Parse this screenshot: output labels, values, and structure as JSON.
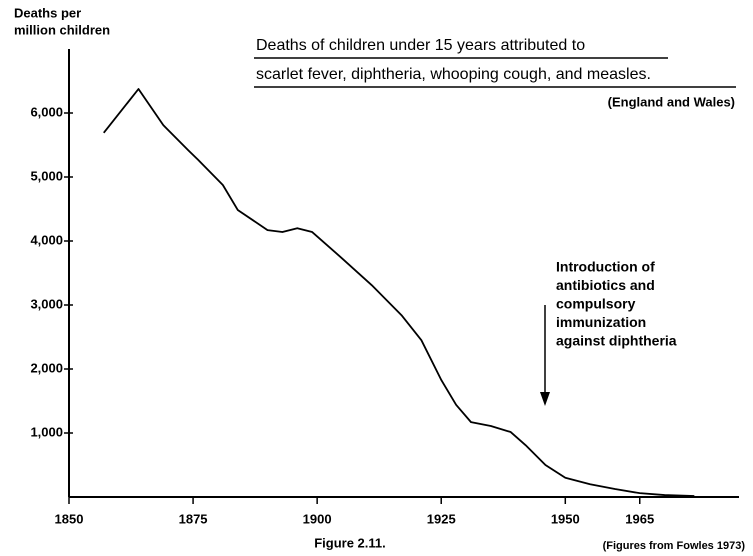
{
  "chart_data": {
    "type": "line",
    "title": [
      "Deaths of children under 15 years attributed to",
      "scarlet fever, diphtheria, whooping cough, and measles."
    ],
    "subtitle": "(England and Wales)",
    "y_label": [
      "Deaths per",
      "million children"
    ],
    "annotation": [
      "Introduction of",
      "antibiotics and",
      "compulsory",
      "immunization",
      "against diphtheria"
    ],
    "caption": "Figure 2.11.",
    "source": "(Figures from Fowles 1973)",
    "x": [
      1857,
      1864,
      1869,
      1874,
      1876,
      1881,
      1884,
      1890,
      1893,
      1896,
      1899,
      1905,
      1911,
      1917,
      1921,
      1925,
      1928,
      1931,
      1935,
      1939,
      1942,
      1946,
      1950,
      1955,
      1960,
      1965,
      1970,
      1976
    ],
    "series": [
      {
        "name": "Deaths",
        "color": "#000000",
        "values": [
          5690,
          6375,
          5810,
          5420,
          5270,
          4875,
          4485,
          4170,
          4140,
          4200,
          4140,
          3730,
          3310,
          2840,
          2450,
          1830,
          1440,
          1170,
          1110,
          1015,
          810,
          500,
          300,
          200,
          125,
          60,
          30,
          15
        ]
      }
    ],
    "xlim": [
      1850,
      1985
    ],
    "ylim": [
      0,
      7000
    ],
    "xticks": [
      1850,
      1875,
      1900,
      1925,
      1950,
      1965
    ],
    "yticks": [
      {
        "value": 1000,
        "label": "1,000"
      },
      {
        "value": 2000,
        "label": "2,000"
      },
      {
        "value": 3000,
        "label": "3,000"
      },
      {
        "value": 4000,
        "label": "4,000"
      },
      {
        "value": 5000,
        "label": "5,000"
      },
      {
        "value": 6000,
        "label": "6,000"
      }
    ]
  }
}
